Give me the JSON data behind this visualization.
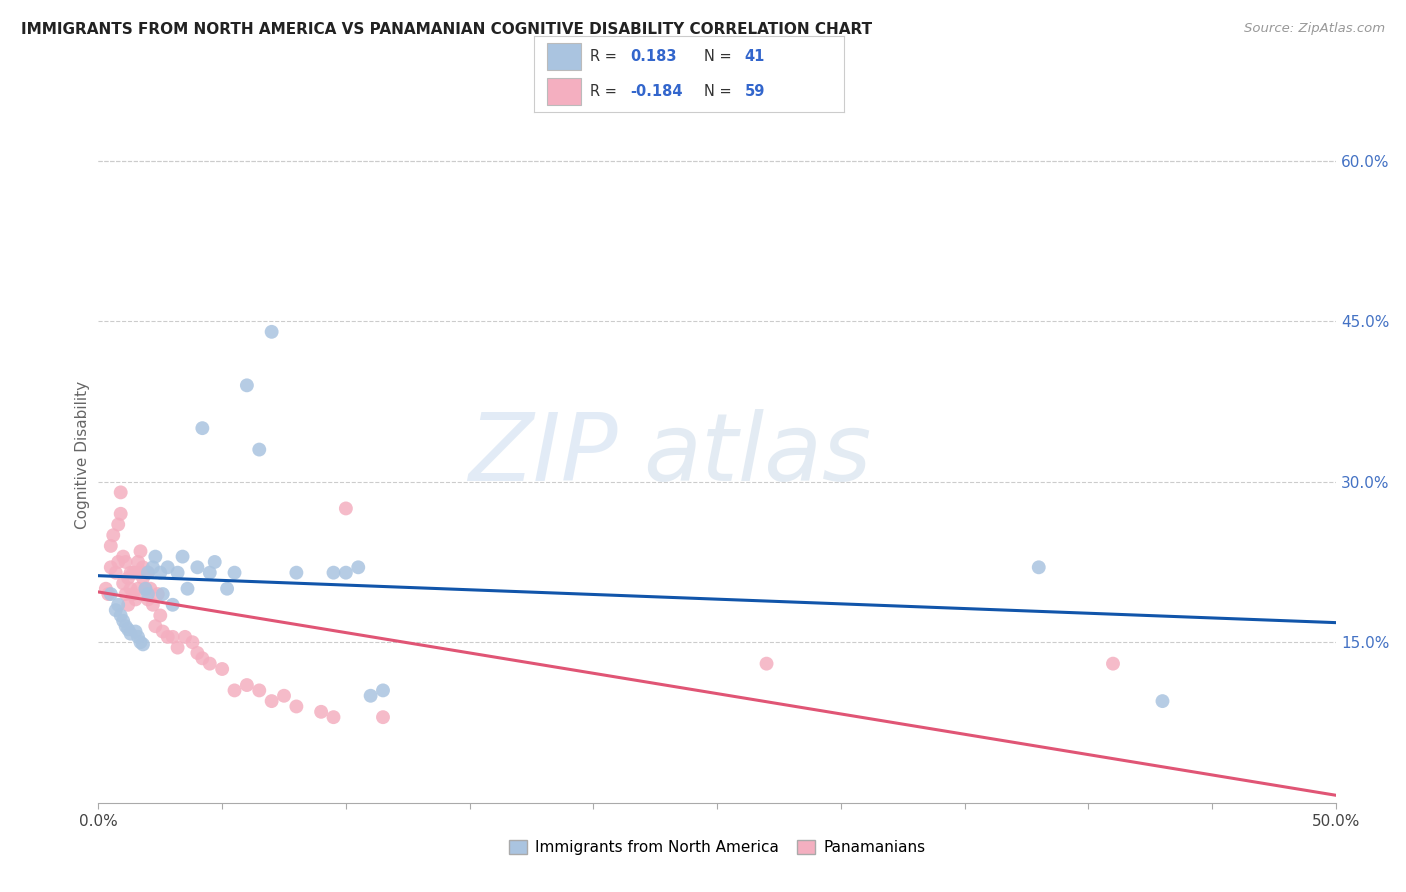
{
  "title": "IMMIGRANTS FROM NORTH AMERICA VS PANAMANIAN COGNITIVE DISABILITY CORRELATION CHART",
  "source": "Source: ZipAtlas.com",
  "ylabel": "Cognitive Disability",
  "right_yticks": [
    "60.0%",
    "45.0%",
    "30.0%",
    "15.0%"
  ],
  "right_ytick_vals": [
    0.6,
    0.45,
    0.3,
    0.15
  ],
  "xlim": [
    0.0,
    0.5
  ],
  "ylim": [
    0.0,
    0.65
  ],
  "blue_color": "#aac4e0",
  "pink_color": "#f4afc0",
  "line_blue": "#1155aa",
  "line_pink": "#e05575",
  "watermark_zip": "ZIP",
  "watermark_atlas": "atlas",
  "blue_scatter_x": [
    0.005,
    0.007,
    0.008,
    0.009,
    0.01,
    0.011,
    0.012,
    0.013,
    0.015,
    0.016,
    0.017,
    0.018,
    0.019,
    0.02,
    0.02,
    0.022,
    0.023,
    0.025,
    0.026,
    0.028,
    0.03,
    0.032,
    0.034,
    0.036,
    0.04,
    0.042,
    0.045,
    0.047,
    0.052,
    0.055,
    0.06,
    0.065,
    0.07,
    0.08,
    0.095,
    0.1,
    0.105,
    0.11,
    0.115,
    0.38,
    0.43
  ],
  "blue_scatter_y": [
    0.195,
    0.18,
    0.185,
    0.175,
    0.17,
    0.165,
    0.162,
    0.158,
    0.16,
    0.155,
    0.15,
    0.148,
    0.2,
    0.195,
    0.215,
    0.22,
    0.23,
    0.215,
    0.195,
    0.22,
    0.185,
    0.215,
    0.23,
    0.2,
    0.22,
    0.35,
    0.215,
    0.225,
    0.2,
    0.215,
    0.39,
    0.33,
    0.44,
    0.215,
    0.215,
    0.215,
    0.22,
    0.1,
    0.105,
    0.22,
    0.095
  ],
  "pink_scatter_x": [
    0.003,
    0.004,
    0.005,
    0.005,
    0.006,
    0.007,
    0.008,
    0.008,
    0.009,
    0.009,
    0.01,
    0.01,
    0.011,
    0.011,
    0.012,
    0.012,
    0.013,
    0.013,
    0.014,
    0.014,
    0.015,
    0.015,
    0.016,
    0.016,
    0.017,
    0.017,
    0.018,
    0.018,
    0.019,
    0.019,
    0.02,
    0.02,
    0.021,
    0.022,
    0.023,
    0.024,
    0.025,
    0.026,
    0.028,
    0.03,
    0.032,
    0.035,
    0.038,
    0.04,
    0.042,
    0.045,
    0.05,
    0.055,
    0.06,
    0.065,
    0.07,
    0.075,
    0.08,
    0.09,
    0.095,
    0.1,
    0.115,
    0.27,
    0.41
  ],
  "pink_scatter_y": [
    0.2,
    0.195,
    0.22,
    0.24,
    0.25,
    0.215,
    0.26,
    0.225,
    0.27,
    0.29,
    0.23,
    0.205,
    0.195,
    0.225,
    0.185,
    0.21,
    0.2,
    0.215,
    0.195,
    0.215,
    0.19,
    0.215,
    0.2,
    0.225,
    0.215,
    0.235,
    0.21,
    0.22,
    0.2,
    0.215,
    0.19,
    0.215,
    0.2,
    0.185,
    0.165,
    0.195,
    0.175,
    0.16,
    0.155,
    0.155,
    0.145,
    0.155,
    0.15,
    0.14,
    0.135,
    0.13,
    0.125,
    0.105,
    0.11,
    0.105,
    0.095,
    0.1,
    0.09,
    0.085,
    0.08,
    0.275,
    0.08,
    0.13,
    0.13
  ],
  "legend_text_r1_r": "0.183",
  "legend_text_r1_n": "41",
  "legend_text_r2_r": "-0.184",
  "legend_text_r2_n": "59"
}
